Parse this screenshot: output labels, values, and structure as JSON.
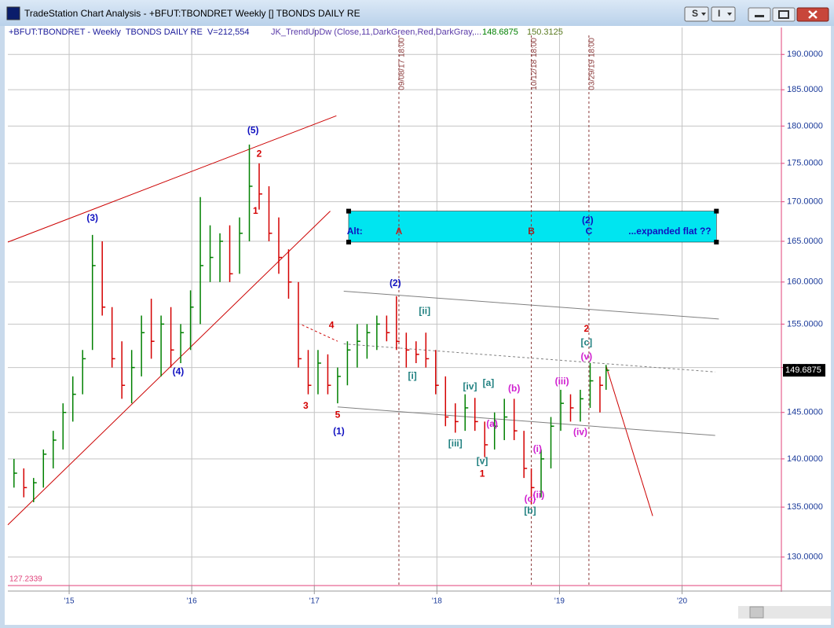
{
  "window": {
    "title": "TradeStation Chart Analysis - +BFUT:TBONDRET Weekly [] TBONDS DAILY RE",
    "buttons": [
      "S",
      "I"
    ]
  },
  "chart_data": {
    "type": "ohlc",
    "symbol_label": "+BFUT:TBONDRET - Weekly  TBONDS DAILY RE  V=212,554",
    "indicator_label": "JK_TrendUpDw (Close,11,DarkGreen,Red,DarkGray,...",
    "indicator_values": [
      148.6875,
      150.3125
    ],
    "last_price": 149.6875,
    "log_y": true,
    "up_color": "#008000",
    "down_color": "#d40000",
    "xlim": [
      2014.5,
      2020.81
    ],
    "ylim": [
      127.2339,
      193.9
    ],
    "xticks": [
      {
        "value": 2015,
        "label": "'15"
      },
      {
        "value": 2016,
        "label": "'16"
      },
      {
        "value": 2017,
        "label": "'17"
      },
      {
        "value": 2018,
        "label": "'18"
      },
      {
        "value": 2019,
        "label": "'19"
      },
      {
        "value": 2020,
        "label": "'20"
      }
    ],
    "yticks": [
      {
        "value": 130,
        "label": "130.0000"
      },
      {
        "value": 135,
        "label": "135.0000"
      },
      {
        "value": 140,
        "label": "140.0000"
      },
      {
        "value": 145,
        "label": "145.0000"
      },
      {
        "value": 150,
        "label": "150.0000"
      },
      {
        "value": 155,
        "label": "155.0000"
      },
      {
        "value": 160,
        "label": "160.0000"
      },
      {
        "value": 165,
        "label": "165.0000"
      },
      {
        "value": 170,
        "label": "170.0000"
      },
      {
        "value": 175,
        "label": "175.0000"
      },
      {
        "value": 180,
        "label": "180.0000"
      },
      {
        "value": 185,
        "label": "185.0000"
      },
      {
        "value": 190,
        "label": "190.0000"
      }
    ],
    "grid": true,
    "x": [
      2014.55,
      2014.63,
      2014.71,
      2014.79,
      2014.87,
      2014.95,
      2015.03,
      2015.11,
      2015.19,
      2015.27,
      2015.35,
      2015.43,
      2015.51,
      2015.59,
      2015.67,
      2015.75,
      2015.83,
      2015.91,
      2015.99,
      2016.07,
      2016.15,
      2016.23,
      2016.31,
      2016.39,
      2016.47,
      2016.55,
      2016.63,
      2016.71,
      2016.79,
      2016.87,
      2016.95,
      2017.03,
      2017.11,
      2017.19,
      2017.27,
      2017.35,
      2017.43,
      2017.51,
      2017.59,
      2017.67,
      2017.75,
      2017.83,
      2017.91,
      2017.99,
      2018.07,
      2018.15,
      2018.23,
      2018.31,
      2018.39,
      2018.47,
      2018.55,
      2018.63,
      2018.71,
      2018.77,
      2018.85,
      2018.93,
      2019.01,
      2019.09,
      2019.17,
      2019.25,
      2019.33,
      2019.38
    ],
    "high": [
      140,
      139,
      138,
      141,
      143,
      146,
      149,
      152,
      165.8,
      165,
      157,
      153,
      152,
      156,
      158,
      156,
      157,
      155,
      159,
      170.6,
      167,
      166,
      167,
      168,
      177.5,
      175,
      172,
      168,
      164,
      160,
      152,
      152,
      151.5,
      150,
      153,
      155,
      155,
      156,
      156,
      158.3,
      154,
      153,
      154,
      152,
      149,
      146,
      147,
      146.6,
      144,
      145,
      146.5,
      146.5,
      143,
      139,
      141,
      144.5,
      147.5,
      147,
      147.5,
      150.5,
      149,
      150.3
    ],
    "low": [
      137,
      136,
      135.5,
      137,
      139,
      141,
      144,
      147,
      152,
      156,
      150,
      146.5,
      146,
      149,
      151,
      149,
      150,
      150.5,
      152,
      155,
      160,
      160,
      160,
      161,
      165,
      169,
      165,
      161,
      158,
      150,
      147,
      147,
      147,
      146,
      148,
      150,
      151,
      152,
      153,
      152,
      150,
      150.5,
      150,
      147,
      143.5,
      142.8,
      143,
      143,
      140.2,
      141,
      142,
      142,
      138,
      135.3,
      136,
      139,
      143,
      144,
      144,
      145.5,
      145,
      147.5
    ],
    "close": [
      138.5,
      137,
      137.5,
      140.5,
      142,
      145,
      147,
      151,
      162,
      157,
      151,
      148,
      150,
      154,
      153,
      155,
      152,
      154,
      157,
      162,
      163,
      165,
      161,
      166,
      172,
      171,
      166,
      163,
      160,
      151,
      148,
      150.5,
      148,
      149,
      152,
      153,
      154,
      155,
      154,
      153,
      152,
      151.5,
      151,
      148,
      144.5,
      144,
      145.5,
      144,
      141.5,
      143.5,
      144.5,
      143,
      139,
      137,
      140,
      143.5,
      146,
      145.5,
      146.5,
      148.5,
      148,
      149.6875
    ],
    "trendlines": [
      {
        "x": [
          2014.5,
          2017.18
        ],
        "y": [
          164.9,
          181.4
        ],
        "color": "#cc0000",
        "dash": false
      },
      {
        "x": [
          2014.5,
          2017.13
        ],
        "y": [
          133.2,
          168.8
        ],
        "color": "#cc0000",
        "dash": false
      },
      {
        "x": [
          2019.38,
          2019.76
        ],
        "y": [
          150.2,
          134.1
        ],
        "color": "#cc0000",
        "dash": false
      },
      {
        "x": [
          2016.9,
          2017.19
        ],
        "y": [
          154.9,
          153.0
        ],
        "color": "#cc0000",
        "dash": true
      },
      {
        "x": [
          2017.24,
          2020.3
        ],
        "y": [
          158.9,
          155.6
        ],
        "color": "#808080",
        "dash": false
      },
      {
        "x": [
          2017.24,
          2020.27
        ],
        "y": [
          152.7,
          149.5
        ],
        "color": "#808080",
        "dash": true
      },
      {
        "x": [
          2017.19,
          2020.27
        ],
        "y": [
          145.6,
          142.5
        ],
        "color": "#808080",
        "dash": false
      }
    ],
    "markers": [
      {
        "x": 2017.69,
        "label": "09/08/17 18:00"
      },
      {
        "x": 2018.77,
        "label": "10/12/18 18:00"
      },
      {
        "x": 2019.24,
        "label": "03/29/19 18:00"
      }
    ],
    "box": {
      "x": [
        2017.28,
        2020.28
      ],
      "y": [
        164.9,
        168.8
      ],
      "color": "#00e5f0"
    },
    "annotations": [
      {
        "text": "(5)",
        "x": 2016.5,
        "y": 179.35,
        "color": "#1010c0"
      },
      {
        "text": "2",
        "x": 2016.55,
        "y": 176.2,
        "color": "#d40000"
      },
      {
        "text": "1",
        "x": 2016.52,
        "y": 168.8,
        "color": "#d40000"
      },
      {
        "text": "(3)",
        "x": 2015.19,
        "y": 167.9,
        "color": "#1010c0"
      },
      {
        "text": "(4)",
        "x": 2015.89,
        "y": 149.5,
        "color": "#1010c0"
      },
      {
        "text": "4",
        "x": 2017.14,
        "y": 154.8,
        "color": "#d40000"
      },
      {
        "text": "3",
        "x": 2016.93,
        "y": 145.7,
        "color": "#d40000"
      },
      {
        "text": "5",
        "x": 2017.19,
        "y": 144.7,
        "color": "#d40000"
      },
      {
        "text": "(1)",
        "x": 2017.2,
        "y": 142.9,
        "color": "#1010c0"
      },
      {
        "text": "(2)",
        "x": 2017.66,
        "y": 159.8,
        "color": "#1010c0"
      },
      {
        "text": "[ii]",
        "x": 2017.9,
        "y": 156.5,
        "color": "#208080"
      },
      {
        "text": "[i]",
        "x": 2017.8,
        "y": 149.0,
        "color": "#208080"
      },
      {
        "text": "[iv]",
        "x": 2018.27,
        "y": 147.8,
        "color": "#208080"
      },
      {
        "text": "[a]",
        "x": 2018.42,
        "y": 148.2,
        "color": "#208080"
      },
      {
        "text": "(b)",
        "x": 2018.63,
        "y": 147.6,
        "color": "#d020d0"
      },
      {
        "text": "[iii]",
        "x": 2018.15,
        "y": 141.6,
        "color": "#208080"
      },
      {
        "text": "(a)",
        "x": 2018.45,
        "y": 143.7,
        "color": "#d020d0"
      },
      {
        "text": "[v]",
        "x": 2018.37,
        "y": 139.7,
        "color": "#208080"
      },
      {
        "text": "1",
        "x": 2018.37,
        "y": 138.4,
        "color": "#d40000"
      },
      {
        "text": "(i)",
        "x": 2018.82,
        "y": 141.0,
        "color": "#d020d0"
      },
      {
        "text": "(c)",
        "x": 2018.76,
        "y": 135.8,
        "color": "#d020d0"
      },
      {
        "text": "(ii)",
        "x": 2018.83,
        "y": 136.2,
        "color": "#d020d0"
      },
      {
        "text": "[b]",
        "x": 2018.76,
        "y": 134.6,
        "color": "#208080"
      },
      {
        "text": "(iii)",
        "x": 2019.02,
        "y": 148.4,
        "color": "#d020d0"
      },
      {
        "text": "(iv)",
        "x": 2019.17,
        "y": 142.8,
        "color": "#d020d0"
      },
      {
        "text": "(v)",
        "x": 2019.22,
        "y": 151.2,
        "color": "#d020d0"
      },
      {
        "text": "[c]",
        "x": 2019.22,
        "y": 152.8,
        "color": "#208080"
      },
      {
        "text": "2",
        "x": 2019.22,
        "y": 154.4,
        "color": "#d40000"
      },
      {
        "text": "(2)",
        "x": 2019.23,
        "y": 167.6,
        "color": "#1010c0"
      },
      {
        "text": "Alt:",
        "x": 2017.33,
        "y": 166.2,
        "color": "#1010c0"
      },
      {
        "text": "A",
        "x": 2017.69,
        "y": 166.2,
        "color": "#c02020"
      },
      {
        "text": "B",
        "x": 2018.77,
        "y": 166.2,
        "color": "#a02020"
      },
      {
        "text": "C",
        "x": 2019.24,
        "y": 166.2,
        "color": "#1010c0"
      },
      {
        "text": "...expanded flat ??",
        "x": 2019.9,
        "y": 166.2,
        "color": "#1010c0"
      }
    ]
  }
}
